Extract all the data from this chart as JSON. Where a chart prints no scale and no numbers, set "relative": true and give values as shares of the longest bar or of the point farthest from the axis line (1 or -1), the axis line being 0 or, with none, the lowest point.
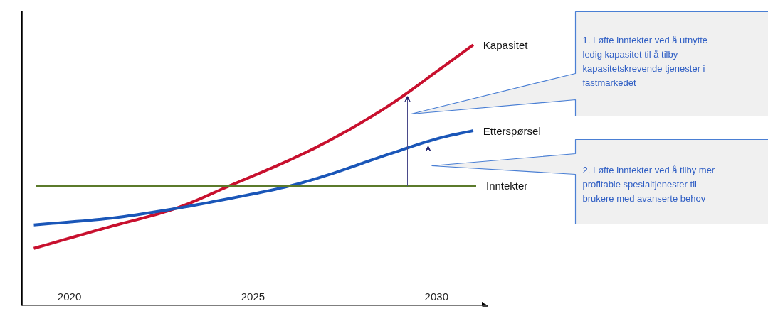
{
  "chart_data": {
    "type": "line",
    "relative": true,
    "xlim": [
      2018.7,
      2031.4
    ],
    "xticks": [
      2020,
      2025,
      2030
    ],
    "tick_labels": "x",
    "grid": false,
    "legend": false,
    "marker": "none",
    "line_style": "solid",
    "series": [
      {
        "name": "Kapasitet",
        "color": "#c8102e",
        "x": [
          2019.03,
          2021.03,
          2022.87,
          2024.4,
          2026.1,
          2026.9,
          2028.6,
          2030.2,
          2031
        ],
        "values": [
          0.22,
          0.3,
          0.372,
          0.462,
          0.565,
          0.62,
          0.758,
          0.918,
          1.0
        ]
      },
      {
        "name": "Etterspørsel",
        "color": "#1a56b8",
        "x": [
          2019.03,
          2021.03,
          2022.87,
          2024.4,
          2026.0,
          2026.9,
          2028.6,
          2030.2,
          2031
        ],
        "values": [
          0.31,
          0.334,
          0.372,
          0.412,
          0.459,
          0.495,
          0.576,
          0.647,
          0.671
        ]
      },
      {
        "name": "Inntekter",
        "color": "#5b7a2b",
        "x": [
          2019.09,
          2031.08
        ],
        "values": [
          0.459,
          0.459
        ]
      }
    ],
    "annotations": [
      {
        "text": "1. Løfte inntekter ved å utnytte ledig kapasitet til å tilby kapasitetskrevende tjenester i fastmarkedet"
      },
      {
        "text": "2. Løfte inntekter ved å tilby mer profitable spesialtjenester til brukere med avanserte behov"
      }
    ]
  }
}
